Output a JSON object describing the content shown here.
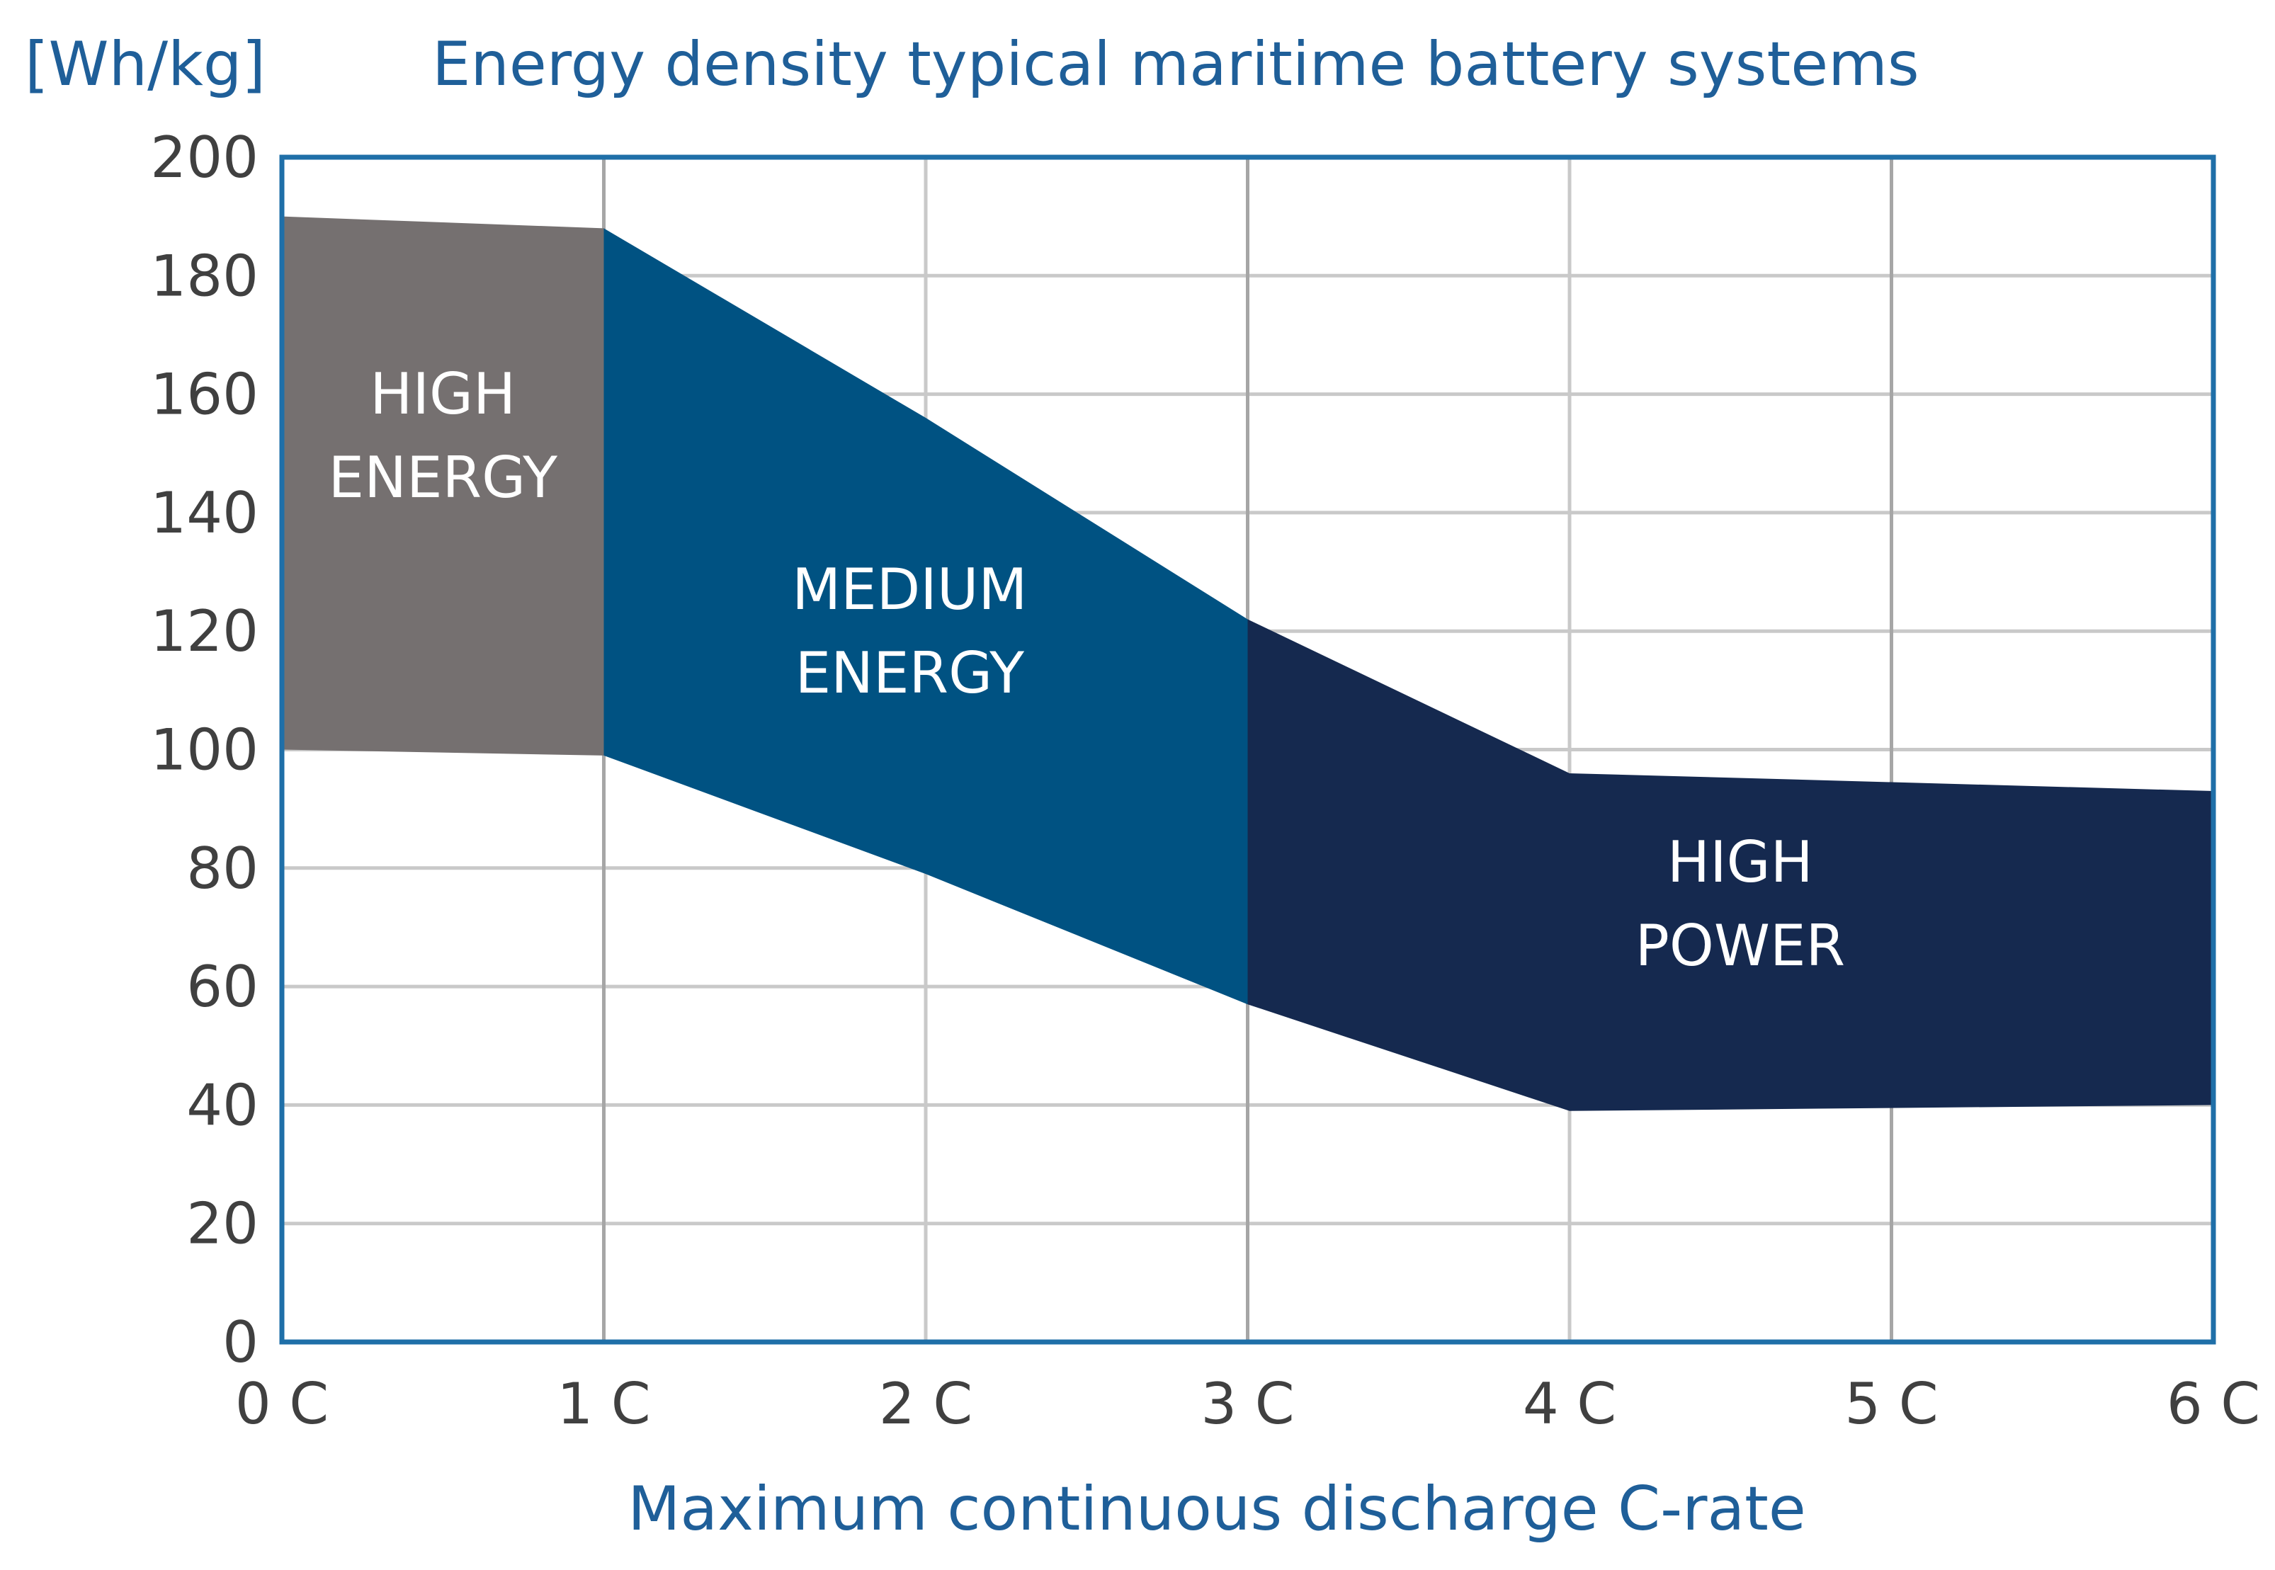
{
  "chart_data": {
    "type": "area",
    "title": "Energy density typical maritime battery systems",
    "ylabel": "[Wh/kg]",
    "xlabel": "Maximum continuous discharge C-rate",
    "x_ticks": [
      "0 C",
      "1 C",
      "2 C",
      "3 C",
      "4 C",
      "5 C",
      "6 C"
    ],
    "y_ticks": [
      "0",
      "20",
      "40",
      "60",
      "80",
      "100",
      "120",
      "140",
      "160",
      "180",
      "200"
    ],
    "xlim": [
      0,
      6
    ],
    "ylim": [
      0,
      200
    ],
    "grid": true,
    "series": [
      {
        "name": "High Energy",
        "label_lines": [
          "HIGH",
          "ENERGY"
        ],
        "color": "#757070",
        "x": [
          0,
          1
        ],
        "upper": [
          190,
          188
        ],
        "lower": [
          100,
          99
        ]
      },
      {
        "name": "Medium Energy",
        "label_lines": [
          "MEDIUM",
          "ENERGY"
        ],
        "color": "#005282",
        "x": [
          1,
          2,
          3
        ],
        "upper": [
          188,
          156,
          122
        ],
        "lower": [
          99,
          79,
          57
        ]
      },
      {
        "name": "High Power",
        "label_lines": [
          "HIGH",
          "POWER"
        ],
        "color": "#15294f",
        "x": [
          3,
          4,
          6
        ],
        "upper": [
          122,
          96,
          93
        ],
        "lower": [
          57,
          39,
          40
        ]
      }
    ],
    "colors": {
      "axis": "#1f6fa8",
      "title": "#1f5f99",
      "grid_major": "#c9c9c9",
      "grid_minor": "#a6a6a6",
      "tick_text": "#404040"
    }
  }
}
